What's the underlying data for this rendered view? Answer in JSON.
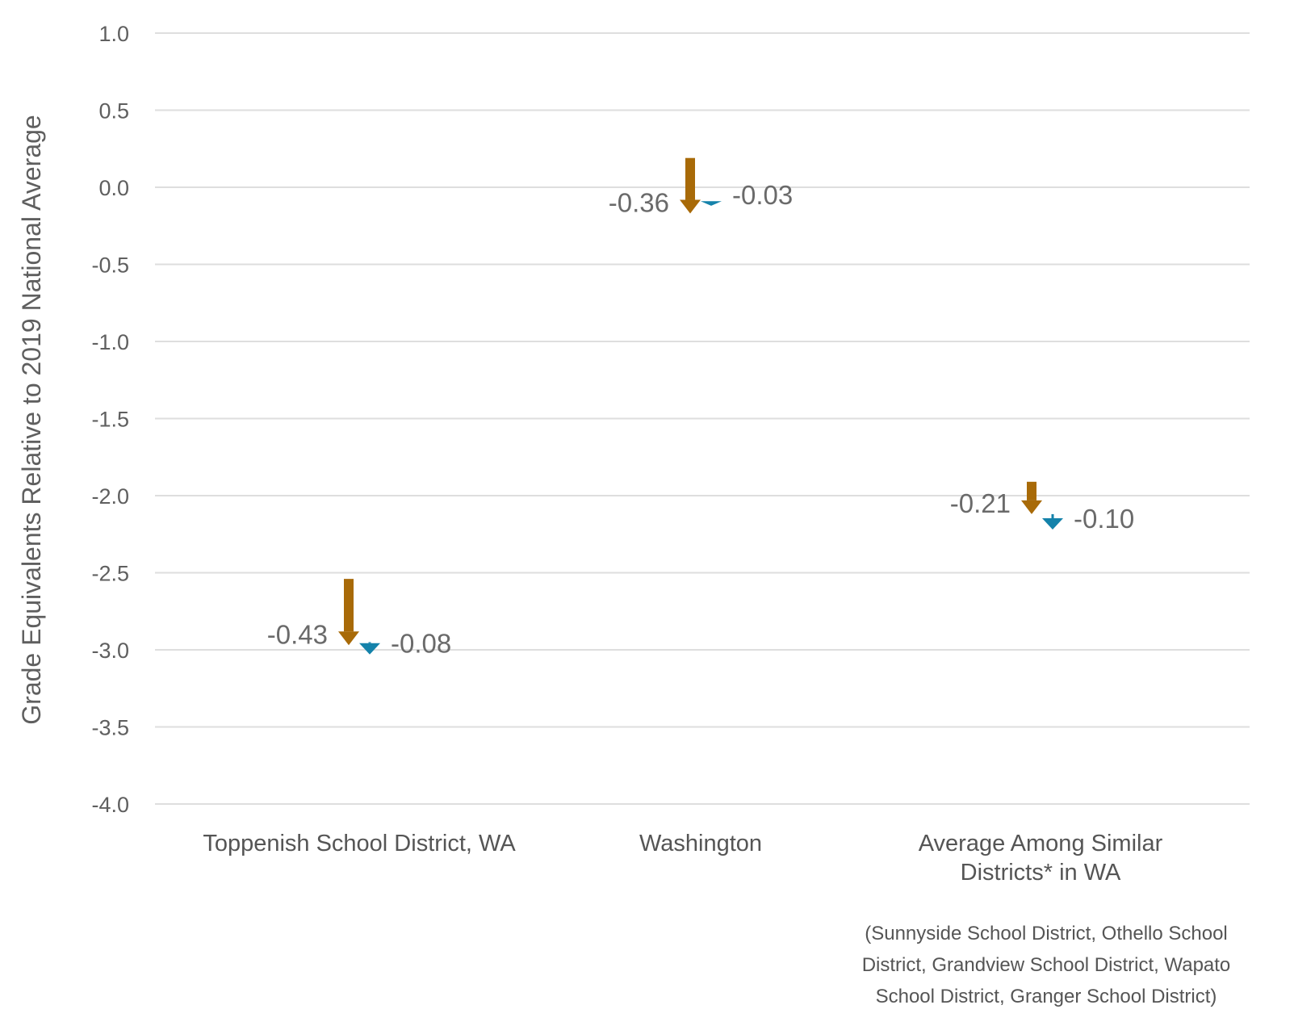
{
  "chart_data": {
    "type": "arrow",
    "ylabel": "Grade Equivalents Relative to 2019 National Average",
    "ylim": [
      -4.0,
      1.0
    ],
    "yticks": [
      "1.0",
      "0.5",
      "0.0",
      "-0.5",
      "-1.0",
      "-1.5",
      "-2.0",
      "-2.5",
      "-3.0",
      "-3.5",
      "-4.0"
    ],
    "grid": true,
    "categories": [
      [
        "Toppenish School District, WA"
      ],
      [
        "Washington"
      ],
      [
        "Average Among Similar",
        "Districts* in WA"
      ]
    ],
    "series": [
      {
        "color": "#a86a08",
        "start": [
          -2.54,
          0.19,
          -1.91
        ],
        "change": [
          -0.43,
          -0.36,
          -0.21
        ],
        "labels": [
          "-0.43",
          "-0.36",
          "-0.21"
        ]
      },
      {
        "color": "#1482aa",
        "start": [
          -2.95,
          -0.09,
          -2.12
        ],
        "change": [
          -0.08,
          -0.03,
          -0.1
        ],
        "labels": [
          "-0.08",
          "-0.03",
          "-0.10"
        ]
      }
    ],
    "note": [
      "(Sunnyside School District, Othello School",
      "District, Grandview School District, Wapato",
      "School District, Granger School District)"
    ]
  }
}
